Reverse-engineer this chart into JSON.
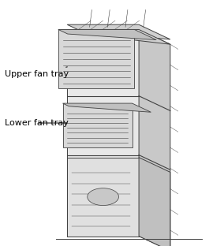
{
  "bg_color": "#ffffff",
  "line_color": "#404040",
  "fill_light": "#d8d8d8",
  "fill_medium": "#b8b8b8",
  "fill_dark": "#888888",
  "label_upper": "Upper fan tray",
  "label_lower": "Lower fan tray",
  "label_fontsize": 8,
  "fig_width": 2.84,
  "fig_height": 3.12,
  "dpi": 100
}
